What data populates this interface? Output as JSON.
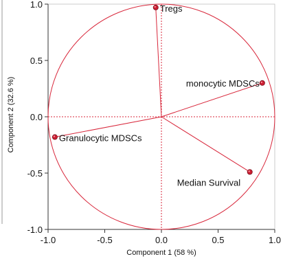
{
  "chart_data": {
    "type": "scatter",
    "subtype": "pca-loading-plot",
    "title": "",
    "xlabel": "Component 1  (58 %)",
    "ylabel": "Component 2  (32.6 %)",
    "xlim": [
      -1.0,
      1.0
    ],
    "ylim": [
      -1.0,
      1.0
    ],
    "x_ticks": [
      "-1.0",
      "-0.5",
      "0.0",
      "0.5",
      "1.0"
    ],
    "y_ticks": [
      "1.0",
      "0.5",
      "0.0",
      "-0.5",
      "-1.0"
    ],
    "x_tick_values": [
      -1.0,
      -0.5,
      0.0,
      0.5,
      1.0
    ],
    "y_tick_values": [
      1.0,
      0.5,
      0.0,
      -0.5,
      -1.0
    ],
    "unit_circle": true,
    "grid": false,
    "reference_lines": [
      0
    ],
    "points": [
      {
        "label": "Tregs",
        "x": -0.05,
        "y": 0.97
      },
      {
        "label": "monocytic MDSCs",
        "x": 0.89,
        "y": 0.3
      },
      {
        "label": "Granulocytic MDSCs",
        "x": -0.94,
        "y": -0.18
      },
      {
        "label": "Median Survival",
        "x": 0.78,
        "y": -0.49
      }
    ],
    "colors": {
      "circle": "#d8263a",
      "vector": "#d8263a",
      "reference": "#d8263a",
      "point": "#cc1f33",
      "axis": "#333333"
    }
  }
}
